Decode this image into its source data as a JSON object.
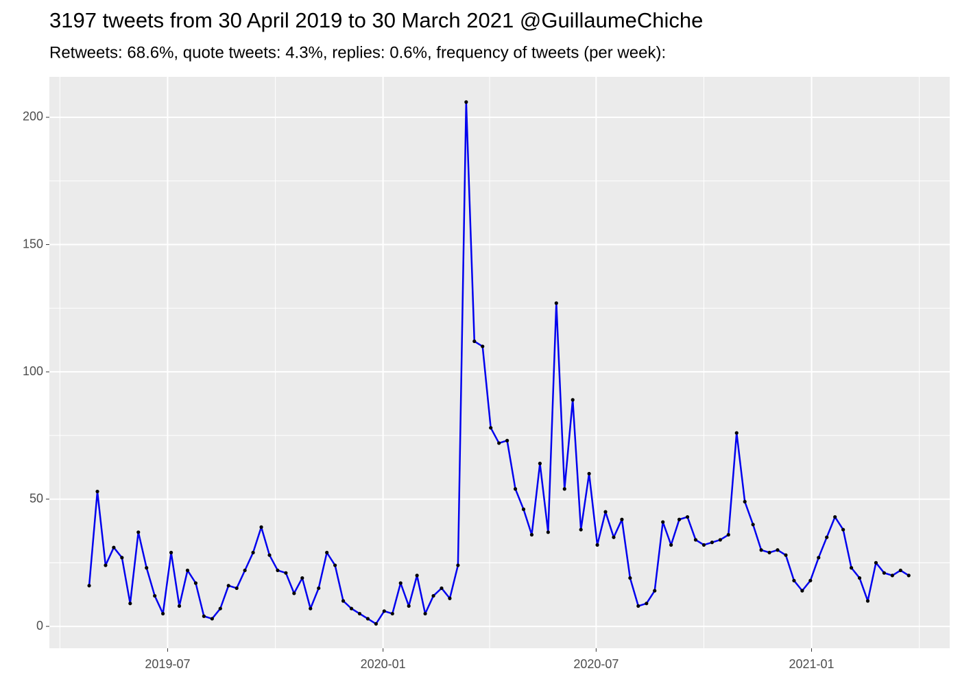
{
  "chart_data": {
    "type": "line",
    "title": "3197 tweets from 30 April 2019 to 30 March 2021 @GuillaumeChiche",
    "subtitle": "Retweets: 68.6%, quote tweets: 4.3%, replies: 0.6%, frequency of tweets (per week):",
    "x": [
      "2019-04-25",
      "2019-05-02",
      "2019-05-09",
      "2019-05-16",
      "2019-05-23",
      "2019-05-30",
      "2019-06-06",
      "2019-06-13",
      "2019-06-20",
      "2019-06-27",
      "2019-07-04",
      "2019-07-11",
      "2019-07-18",
      "2019-07-25",
      "2019-08-01",
      "2019-08-08",
      "2019-08-15",
      "2019-08-22",
      "2019-08-29",
      "2019-09-05",
      "2019-09-12",
      "2019-09-19",
      "2019-09-26",
      "2019-10-03",
      "2019-10-10",
      "2019-10-17",
      "2019-10-24",
      "2019-10-31",
      "2019-11-07",
      "2019-11-14",
      "2019-11-21",
      "2019-11-28",
      "2019-12-05",
      "2019-12-12",
      "2019-12-19",
      "2019-12-26",
      "2020-01-02",
      "2020-01-09",
      "2020-01-16",
      "2020-01-23",
      "2020-01-30",
      "2020-02-06",
      "2020-02-13",
      "2020-02-20",
      "2020-02-27",
      "2020-03-05",
      "2020-03-12",
      "2020-03-19",
      "2020-03-26",
      "2020-04-02",
      "2020-04-09",
      "2020-04-16",
      "2020-04-23",
      "2020-04-30",
      "2020-05-07",
      "2020-05-14",
      "2020-05-21",
      "2020-05-28",
      "2020-06-04",
      "2020-06-11",
      "2020-06-18",
      "2020-06-25",
      "2020-07-02",
      "2020-07-09",
      "2020-07-16",
      "2020-07-23",
      "2020-07-30",
      "2020-08-06",
      "2020-08-13",
      "2020-08-20",
      "2020-08-27",
      "2020-09-03",
      "2020-09-10",
      "2020-09-17",
      "2020-09-24",
      "2020-10-01",
      "2020-10-08",
      "2020-10-15",
      "2020-10-22",
      "2020-10-29",
      "2020-11-05",
      "2020-11-12",
      "2020-11-19",
      "2020-11-26",
      "2020-12-03",
      "2020-12-10",
      "2020-12-17",
      "2020-12-24",
      "2020-12-31",
      "2021-01-07",
      "2021-01-14",
      "2021-01-21",
      "2021-01-28",
      "2021-02-04",
      "2021-02-11",
      "2021-02-18",
      "2021-02-25",
      "2021-03-04",
      "2021-03-11",
      "2021-03-18",
      "2021-03-25"
    ],
    "values": [
      16,
      53,
      24,
      31,
      27,
      9,
      37,
      23,
      12,
      5,
      29,
      8,
      22,
      17,
      4,
      3,
      7,
      16,
      15,
      22,
      29,
      39,
      28,
      22,
      21,
      13,
      19,
      7,
      15,
      29,
      24,
      10,
      7,
      5,
      3,
      1,
      6,
      5,
      17,
      8,
      20,
      5,
      12,
      15,
      11,
      24,
      206,
      112,
      110,
      78,
      72,
      73,
      54,
      46,
      36,
      64,
      37,
      127,
      54,
      89,
      38,
      60,
      32,
      45,
      35,
      42,
      19,
      8,
      9,
      14,
      41,
      32,
      42,
      43,
      34,
      32,
      33,
      34,
      36,
      76,
      49,
      40,
      30,
      29,
      30,
      28,
      18,
      14,
      18,
      27,
      35,
      43,
      38,
      23,
      19,
      10,
      25,
      21,
      20,
      22,
      20
    ],
    "color": "#0000ee",
    "point_color": "#000000",
    "xlim": [
      "2019-03-22",
      "2021-04-29"
    ],
    "xticks": [
      {
        "value": "2019-07-01",
        "label": "2019-07"
      },
      {
        "value": "2020-01-01",
        "label": "2020-01"
      },
      {
        "value": "2020-07-01",
        "label": "2020-07"
      },
      {
        "value": "2021-01-01",
        "label": "2021-01"
      }
    ],
    "ylim": [
      -8.6,
      215.9
    ],
    "yticks": [
      0,
      50,
      100,
      150,
      200
    ],
    "grid": true
  }
}
